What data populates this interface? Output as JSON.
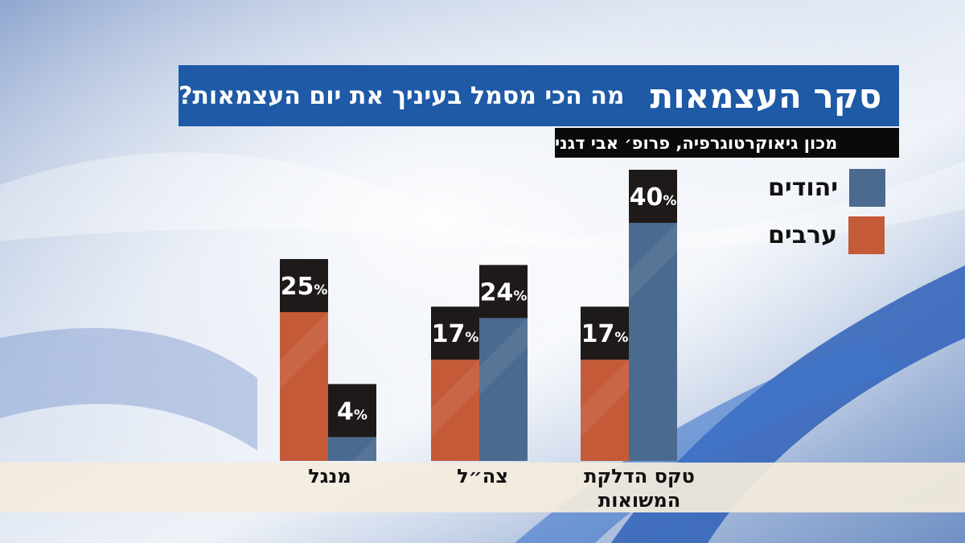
{
  "header": {
    "title": "סקר העצמאות",
    "question": "מה הכי מסמל בעיניך את יום העצמאות?",
    "source": "מכון גיאוקרטוגרפיה, פרופ׳ אבי דגני"
  },
  "colors": {
    "title_bg": "#1e5aa6",
    "source_bg": "#0a0a0a",
    "jews": "#4a6a8f",
    "arabs": "#c45a38",
    "value_box": "#1f1a1a",
    "axis_band": "#f4ecdc"
  },
  "chart_data": {
    "type": "bar",
    "categories": [
      "מנגל",
      "צה״ל",
      "טקס הדלקת המשואות"
    ],
    "series": [
      {
        "name": "ערבים",
        "values": [
          25,
          17,
          17
        ]
      },
      {
        "name": "יהודים",
        "values": [
          4,
          24,
          40
        ]
      }
    ],
    "value_labels": {
      "arabs": [
        "25%",
        "17%",
        "17%"
      ],
      "jews": [
        "4%",
        "24%",
        "40%"
      ]
    },
    "unit": "%",
    "ylim": [
      0,
      45
    ],
    "legend": {
      "position": "top-right",
      "items": [
        "יהודים",
        "ערבים"
      ]
    },
    "grid": false
  }
}
